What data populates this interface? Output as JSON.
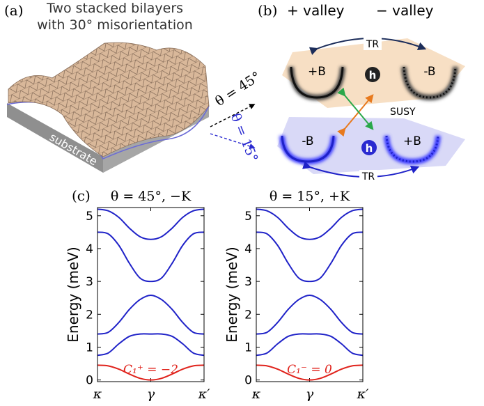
{
  "panel_a": {
    "label": "(a)",
    "title_lines": [
      "Two stacked bilayers",
      "with 30° misorientation"
    ],
    "substrate": "substrate",
    "theta_45": "θ = 45°",
    "theta_15": "θ = 15°"
  },
  "panel_b": {
    "label": "(b)",
    "plus_valley": "+ valley",
    "minus_valley": "− valley",
    "top": {
      "tr": "TR",
      "left": "+B",
      "center": "h",
      "right": "-B"
    },
    "susy": "SUSY",
    "bottom": {
      "tr": "TR",
      "left": "-B",
      "center": "h",
      "right": "+B"
    }
  },
  "panel_c": {
    "label": "(c)"
  },
  "chart_data": [
    {
      "type": "line",
      "title": "θ = 45°, −K",
      "y_label": "Energy (meV)",
      "annotation": "C₁⁺ = −2",
      "x": [
        0,
        0.1,
        0.2,
        0.3,
        0.4,
        0.5,
        0.6,
        0.7,
        0.8,
        0.9,
        1
      ],
      "xlim": [
        0,
        1
      ],
      "xticks": [
        {
          "value": 0,
          "label": "κ"
        },
        {
          "value": 0.5,
          "label": "γ"
        },
        {
          "value": 1,
          "label": "κ′"
        }
      ],
      "ylim": [
        -0.05,
        5.25
      ],
      "yticks": [
        0,
        1,
        2,
        3,
        4,
        5
      ],
      "series": [
        {
          "color": "#e0231c",
          "values": [
            0.45,
            0.43,
            0.33,
            0.18,
            0.05,
            0,
            0.05,
            0.18,
            0.33,
            0.43,
            0.45
          ]
        },
        {
          "color": "#1f22c8",
          "values": [
            0.75,
            0.82,
            1.1,
            1.33,
            1.4,
            1.4,
            1.4,
            1.33,
            1.1,
            0.82,
            0.75
          ]
        },
        {
          "color": "#1f22c8",
          "values": [
            1.4,
            1.45,
            1.75,
            2.15,
            2.45,
            2.58,
            2.45,
            2.15,
            1.75,
            1.45,
            1.4
          ]
        },
        {
          "color": "#1f22c8",
          "values": [
            4.5,
            4.45,
            4.1,
            3.55,
            3.1,
            3.0,
            3.1,
            3.55,
            4.1,
            4.45,
            4.5
          ]
        },
        {
          "color": "#1f22c8",
          "values": [
            5.2,
            5.15,
            4.95,
            4.62,
            4.36,
            4.28,
            4.36,
            4.62,
            4.95,
            5.15,
            5.2
          ]
        }
      ]
    },
    {
      "type": "line",
      "title": "θ = 15°, +K",
      "y_label": "Energy (meV)",
      "annotation": "C₁⁻ = 0",
      "x": [
        0,
        0.1,
        0.2,
        0.3,
        0.4,
        0.5,
        0.6,
        0.7,
        0.8,
        0.9,
        1
      ],
      "xlim": [
        0,
        1
      ],
      "xticks": [
        {
          "value": 0,
          "label": "κ"
        },
        {
          "value": 0.5,
          "label": "γ"
        },
        {
          "value": 1,
          "label": "κ′"
        }
      ],
      "ylim": [
        -0.05,
        5.25
      ],
      "yticks": [
        0,
        1,
        2,
        3,
        4,
        5
      ],
      "series": [
        {
          "color": "#e0231c",
          "values": [
            0.45,
            0.43,
            0.33,
            0.18,
            0.05,
            0,
            0.05,
            0.18,
            0.33,
            0.43,
            0.45
          ]
        },
        {
          "color": "#1f22c8",
          "values": [
            0.75,
            0.82,
            1.1,
            1.33,
            1.4,
            1.4,
            1.4,
            1.33,
            1.1,
            0.82,
            0.75
          ]
        },
        {
          "color": "#1f22c8",
          "values": [
            1.4,
            1.45,
            1.75,
            2.15,
            2.45,
            2.58,
            2.45,
            2.15,
            1.75,
            1.45,
            1.4
          ]
        },
        {
          "color": "#1f22c8",
          "values": [
            4.5,
            4.45,
            4.1,
            3.55,
            3.1,
            3.0,
            3.1,
            3.55,
            4.1,
            4.45,
            4.5
          ]
        },
        {
          "color": "#1f22c8",
          "values": [
            5.2,
            5.15,
            4.95,
            4.62,
            4.36,
            4.28,
            4.36,
            4.62,
            4.95,
            5.15,
            5.2
          ]
        }
      ]
    }
  ]
}
